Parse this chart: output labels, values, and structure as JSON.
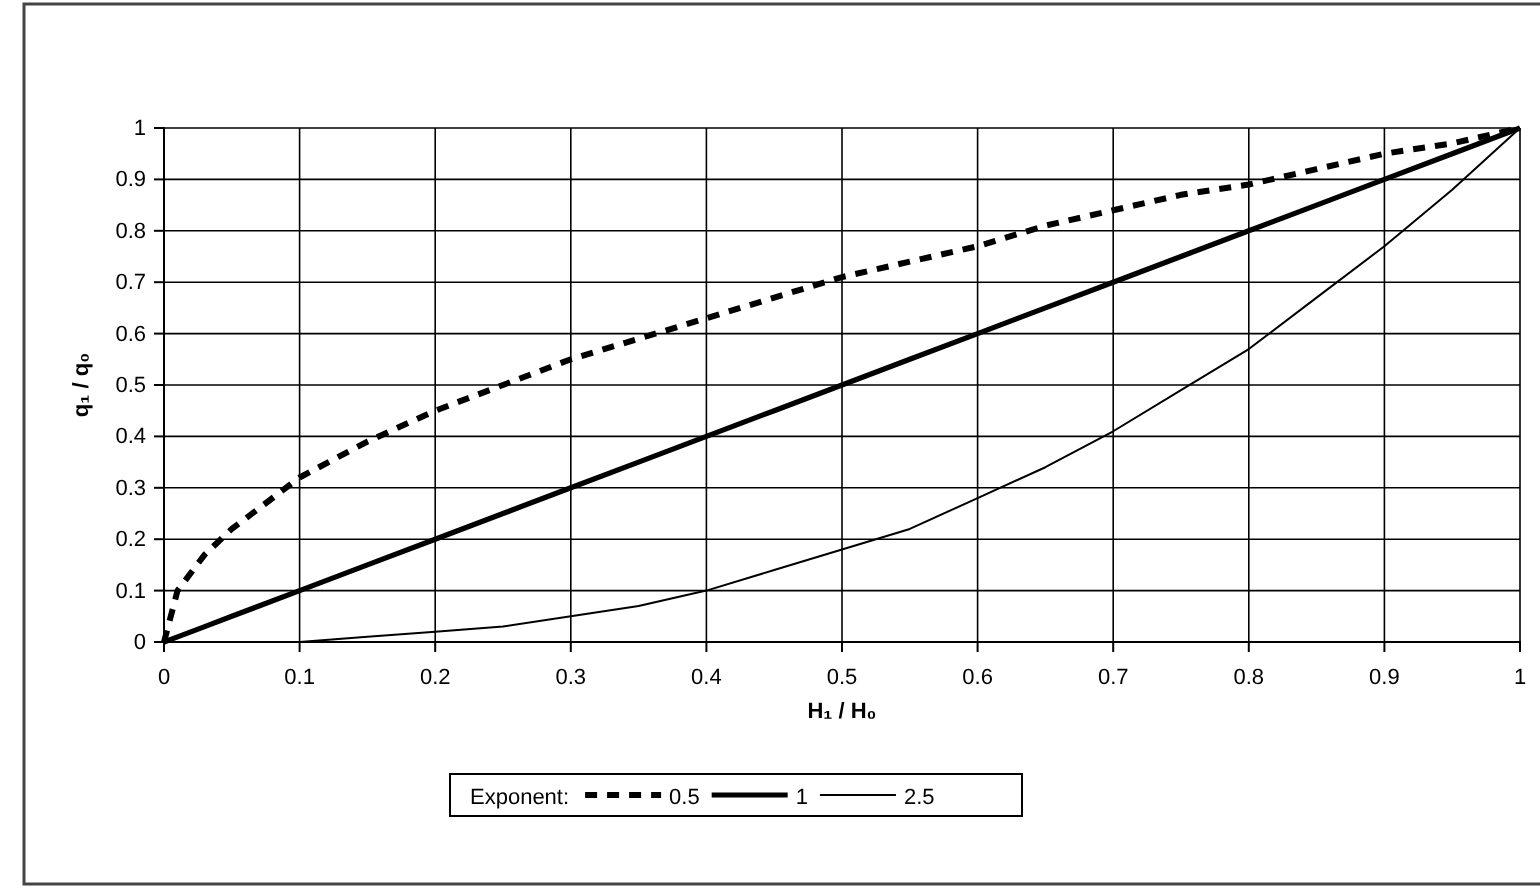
{
  "chart_data": {
    "type": "line",
    "xlabel": "H₁ / H₀",
    "ylabel": "q₁ / q₀",
    "legend_title": "Exponent:",
    "legend": "bottom",
    "grid": true,
    "x": [
      0,
      0.01,
      0.03,
      0.05,
      0.1,
      0.15,
      0.2,
      0.25,
      0.3,
      0.35,
      0.4,
      0.45,
      0.5,
      0.55,
      0.6,
      0.65,
      0.7,
      0.75,
      0.8,
      0.85,
      0.9,
      0.95,
      1
    ],
    "xlim": [
      0,
      1
    ],
    "xticks": [
      0,
      0.1,
      0.2,
      0.3,
      0.4,
      0.5,
      0.6,
      0.7,
      0.8,
      0.9,
      1
    ],
    "ylim": [
      0,
      1
    ],
    "yticks": [
      0,
      0.1,
      0.2,
      0.3,
      0.4,
      0.5,
      0.6,
      0.7,
      0.8,
      0.9,
      1
    ],
    "series": [
      {
        "name": "0.5",
        "color": "#000000",
        "line_style": "dashed",
        "values": [
          0,
          0.1,
          0.17,
          0.22,
          0.32,
          0.39,
          0.45,
          0.5,
          0.55,
          0.59,
          0.63,
          0.67,
          0.71,
          0.74,
          0.77,
          0.81,
          0.84,
          0.87,
          0.89,
          0.92,
          0.95,
          0.97,
          1
        ]
      },
      {
        "name": "1",
        "color": "#000000",
        "line_style": "solid",
        "values": [
          0,
          0.01,
          0.03,
          0.05,
          0.1,
          0.15,
          0.2,
          0.25,
          0.3,
          0.35,
          0.4,
          0.45,
          0.5,
          0.55,
          0.6,
          0.65,
          0.7,
          0.75,
          0.8,
          0.85,
          0.9,
          0.95,
          1
        ]
      },
      {
        "name": "2.5",
        "color": "#000000",
        "line_style": "solid",
        "values": [
          0,
          0,
          0,
          0,
          0,
          0.01,
          0.02,
          0.03,
          0.05,
          0.07,
          0.1,
          0.14,
          0.18,
          0.22,
          0.28,
          0.34,
          0.41,
          0.49,
          0.57,
          0.67,
          0.77,
          0.88,
          1
        ]
      }
    ]
  }
}
